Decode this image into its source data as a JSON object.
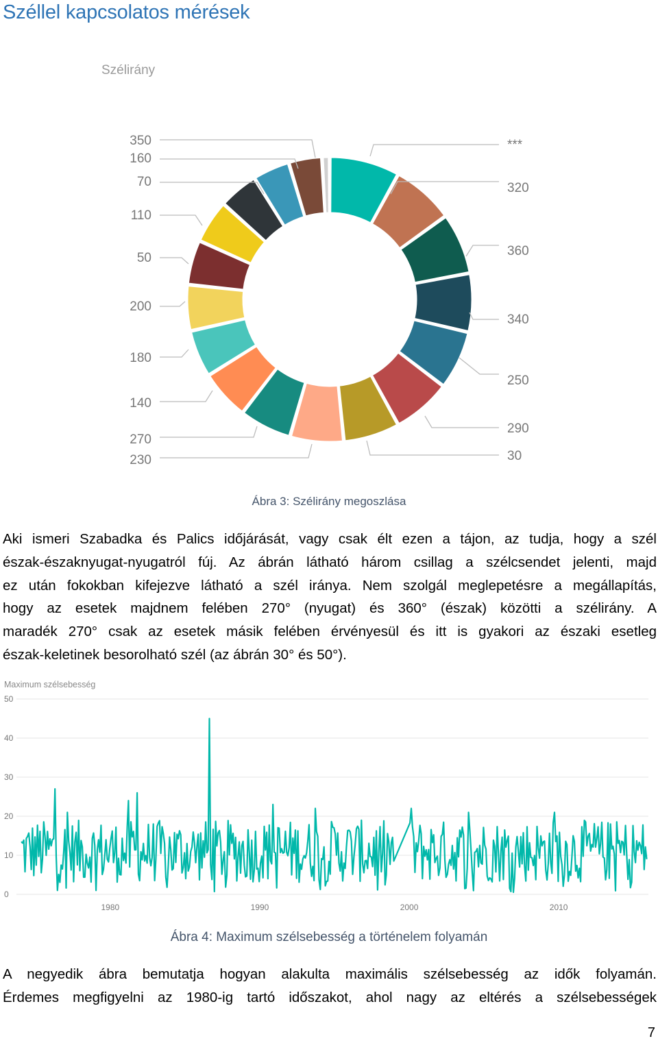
{
  "heading": "Széllel kapcsolatos mérések",
  "fig3": {
    "caption": "Ábra 3: Szélirány megoszlása",
    "chart_data": {
      "type": "pie",
      "title": "Szélirány",
      "donut": true,
      "slices": [
        {
          "label": "320",
          "value": 5.5,
          "color": "#01b8aa"
        },
        {
          "label": "360",
          "value": 4.9,
          "color": "#c07352"
        },
        {
          "label": "340",
          "value": 4.8,
          "color": "#0f5c4f"
        },
        {
          "label": "250",
          "value": 4.6,
          "color": "#1e4b5c"
        },
        {
          "label": "290",
          "value": 4.6,
          "color": "#2a7490"
        },
        {
          "label": "30",
          "value": 4.6,
          "color": "#b94a4a"
        },
        {
          "label": "230",
          "value": 4.4,
          "color": "#b79a28"
        },
        {
          "label": "270",
          "value": 4.2,
          "color": "#fea987"
        },
        {
          "label": "140",
          "value": 4.1,
          "color": "#178b80"
        },
        {
          "label": "180",
          "value": 3.9,
          "color": "#ff8c53"
        },
        {
          "label": "200",
          "value": 3.7,
          "color": "#4ac5bb"
        },
        {
          "label": "50",
          "value": 3.6,
          "color": "#f2d35c"
        },
        {
          "label": "110",
          "value": 3.5,
          "color": "#7c2f2f"
        },
        {
          "label": "70",
          "value": 3.4,
          "color": "#efcb1b"
        },
        {
          "label": "160",
          "value": 3.1,
          "color": "#2f3539"
        },
        {
          "label": "350",
          "value": 2.9,
          "color": "#3a97b8"
        },
        {
          "label": "",
          "value": 2.6,
          "color": "#7a4a38"
        },
        {
          "label": "***",
          "value": 0.6,
          "color": "#d0d0d0"
        }
      ]
    }
  },
  "para1": [
    "Aki ismeri Szabadka és Palics időjárását, vagy csak élt ezen a tájon, az tudja, hogy a szél",
    "észak-északnyugat-nyugatról fúj. Az ábrán látható három csillag a szélcsendet jelenti, majd",
    "ez után fokokban kifejezve látható a szél iránya. Nem szolgál meglepetésre a megállapítás,",
    "hogy az esetek majdnem felében 270° (nyugat) és 360° (észak) közötti a szélirány. A",
    "maradék 270° csak az esetek másik felében érvényesül és itt is gyakori az északi esetleg",
    "észak-keletinek besorolható szél (az ábrán 30° és 50°)."
  ],
  "fig4": {
    "caption": "Ábra 4: Maximum szélsebesség a történelem folyamán",
    "chart_data": {
      "type": "line",
      "title": "Maximum szélsebesség",
      "xlabel": "",
      "ylabel": "",
      "ylim": [
        0,
        50
      ],
      "yticks": [
        "0",
        "10",
        "20",
        "30",
        "40",
        "50"
      ],
      "xticks": [
        "1980",
        "1990",
        "2000",
        "2010"
      ],
      "xrange": [
        1974.0,
        2016.0
      ],
      "color": "#01b8aa",
      "grid": true,
      "notable_points": [
        {
          "x": 1976.3,
          "y": 27
        },
        {
          "x": 1977.1,
          "y": 21
        },
        {
          "x": 1981.2,
          "y": 24
        },
        {
          "x": 1981.8,
          "y": 26
        },
        {
          "x": 1986.6,
          "y": 45
        },
        {
          "x": 1990.9,
          "y": 23
        },
        {
          "x": 1993.7,
          "y": 22
        },
        {
          "x": 2000.1,
          "y": 22
        },
        {
          "x": 2004.0,
          "y": 21
        },
        {
          "x": 2009.7,
          "y": 21
        }
      ],
      "typical_range": [
        3,
        19
      ],
      "gap": [
        1999.0,
        2000.0
      ]
    }
  },
  "para2": [
    "A negyedik ábra bemutatja hogyan alakulta maximális szélsebesség az idők folyamán.",
    "Érdemes megfigyelni az 1980-ig tartó időszakot, ahol nagy az eltérés a szélsebességek"
  ],
  "page_number": "7"
}
